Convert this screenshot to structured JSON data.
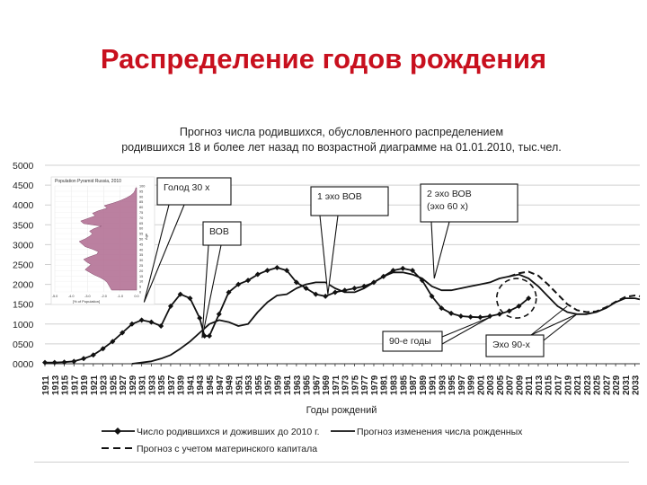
{
  "slide": {
    "title": "Распределение годов рождения"
  },
  "chart_data": {
    "type": "line",
    "title_line1": "Прогноз числа родившихся, обусловленного распределением",
    "title_line2": "родившихся 18 и более лет назад  по возрастной диаграмме на 01.01.2010,  тыс.чел.",
    "xlabel": "Годы рождений",
    "ylabel": "",
    "ylim": [
      0,
      5000
    ],
    "xlim": [
      1911,
      2034
    ],
    "y_ticks": [
      0,
      500,
      1000,
      1500,
      2000,
      2500,
      3000,
      3500,
      4000,
      4500,
      5000
    ],
    "y_tick_labels": [
      "0000",
      "0500",
      "1000",
      "1500",
      "2000",
      "2500",
      "3000",
      "3500",
      "4000",
      "4500",
      "5000"
    ],
    "x_ticks": [
      1911,
      1913,
      1915,
      1917,
      1919,
      1921,
      1923,
      1925,
      1927,
      1929,
      1931,
      1933,
      1935,
      1937,
      1939,
      1941,
      1943,
      1945,
      1947,
      1949,
      1951,
      1953,
      1955,
      1957,
      1959,
      1961,
      1963,
      1965,
      1967,
      1969,
      1971,
      1973,
      1975,
      1977,
      1979,
      1981,
      1983,
      1985,
      1987,
      1989,
      1991,
      1993,
      1995,
      1997,
      1999,
      2001,
      2003,
      2005,
      2007,
      2009,
      2011,
      2013,
      2015,
      2017,
      2019,
      2021,
      2023,
      2025,
      2027,
      2029,
      2031,
      2033
    ],
    "grid": true,
    "legend_position": "bottom",
    "series": [
      {
        "name": "Число родившихся и доживших до 2010 г.",
        "style": "line-diamond",
        "color": "#111111",
        "x": [
          1911,
          1913,
          1915,
          1917,
          1919,
          1921,
          1923,
          1925,
          1927,
          1929,
          1931,
          1933,
          1935,
          1937,
          1939,
          1941,
          1943,
          1944,
          1945,
          1947,
          1949,
          1951,
          1953,
          1955,
          1957,
          1959,
          1961,
          1963,
          1965,
          1967,
          1969,
          1971,
          1973,
          1975,
          1977,
          1979,
          1981,
          1983,
          1985,
          1987,
          1989,
          1991,
          1993,
          1995,
          1997,
          1999,
          2001,
          2003,
          2005,
          2007,
          2009,
          2011
        ],
        "y": [
          30,
          30,
          40,
          60,
          130,
          220,
          380,
          560,
          780,
          1000,
          1100,
          1050,
          950,
          1450,
          1750,
          1650,
          1150,
          700,
          700,
          1250,
          1800,
          2000,
          2100,
          2250,
          2350,
          2420,
          2350,
          2050,
          1900,
          1750,
          1700,
          1800,
          1850,
          1900,
          1950,
          2050,
          2200,
          2350,
          2400,
          2350,
          2100,
          1700,
          1400,
          1270,
          1200,
          1180,
          1170,
          1200,
          1250,
          1330,
          1450,
          1650
        ]
      },
      {
        "name": "Прогноз изменения числа рожденных",
        "style": "line",
        "color": "#111111",
        "x": [
          1929,
          1931,
          1933,
          1935,
          1937,
          1939,
          1941,
          1943,
          1945,
          1947,
          1949,
          1951,
          1953,
          1955,
          1957,
          1959,
          1961,
          1963,
          1965,
          1967,
          1969,
          1971,
          1973,
          1975,
          1977,
          1979,
          1981,
          1983,
          1985,
          1987,
          1989,
          1991,
          1993,
          1995,
          1997,
          1999,
          2001,
          2003,
          2005,
          2007,
          2009,
          2011,
          2013,
          2015,
          2017,
          2019,
          2021,
          2023,
          2025,
          2027,
          2029,
          2031,
          2033,
          2034
        ],
        "y": [
          0,
          30,
          60,
          130,
          220,
          380,
          560,
          780,
          1000,
          1100,
          1050,
          950,
          1000,
          1300,
          1550,
          1720,
          1750,
          1900,
          2000,
          2050,
          2050,
          1900,
          1800,
          1800,
          1900,
          2050,
          2200,
          2300,
          2300,
          2250,
          2150,
          1950,
          1850,
          1850,
          1900,
          1950,
          2000,
          2050,
          2150,
          2200,
          2250,
          2150,
          1950,
          1700,
          1450,
          1300,
          1250,
          1250,
          1300,
          1400,
          1550,
          1650,
          1650,
          1620
        ]
      },
      {
        "name": "Прогноз с учетом материнского капитала",
        "style": "dashed",
        "color": "#111111",
        "x": [
          2007,
          2009,
          2011,
          2013,
          2015,
          2017,
          2019,
          2021,
          2023,
          2025,
          2027,
          2029,
          2031,
          2033,
          2034
        ],
        "y": [
          2200,
          2280,
          2320,
          2220,
          2000,
          1750,
          1500,
          1350,
          1300,
          1320,
          1420,
          1560,
          1680,
          1720,
          1700
        ]
      }
    ],
    "callouts": [
      {
        "text": "Голод 30 х",
        "box": "rect",
        "target_x": 1931.5,
        "target_y": 1550
      },
      {
        "text": "ВОВ",
        "box": "rect",
        "target_x": 1943.5,
        "target_y": 650
      },
      {
        "text": "1 эхо ВОВ",
        "box": "rect",
        "target_x": 1969.5,
        "target_y": 1750
      },
      {
        "text": "2 эхо ВОВ\n(эхо 60 х)",
        "box": "rect",
        "target_x": 1991.5,
        "target_y": 2150
      },
      {
        "text": "90-е годы",
        "box": "rect",
        "target_x": 2003,
        "target_y": 1170
      },
      {
        "text": "Эхо 90-х",
        "box": "rect",
        "target_x": 2021,
        "target_y": 1250
      }
    ],
    "highlight_circle": {
      "x": 2008.5,
      "y": 1650,
      "style": "dashed"
    },
    "inset": {
      "title": "Population Pyramid Russia, 2010",
      "xlabel": "[% of Population]",
      "ylabel": "Age",
      "x_tick_labels": [
        "-5.0",
        "-4.0",
        "-3.0",
        "-2.0",
        "-1.0",
        "0.0"
      ],
      "y_tick_labels": [
        "100",
        "95",
        "90",
        "85",
        "80",
        "75",
        "70",
        "65",
        "60",
        "55",
        "50",
        "45",
        "40",
        "35",
        "30",
        "25",
        "20",
        "15",
        "10",
        "5",
        "0"
      ],
      "fill_color": "#b06a90",
      "line_color": "#6c2a50"
    }
  }
}
